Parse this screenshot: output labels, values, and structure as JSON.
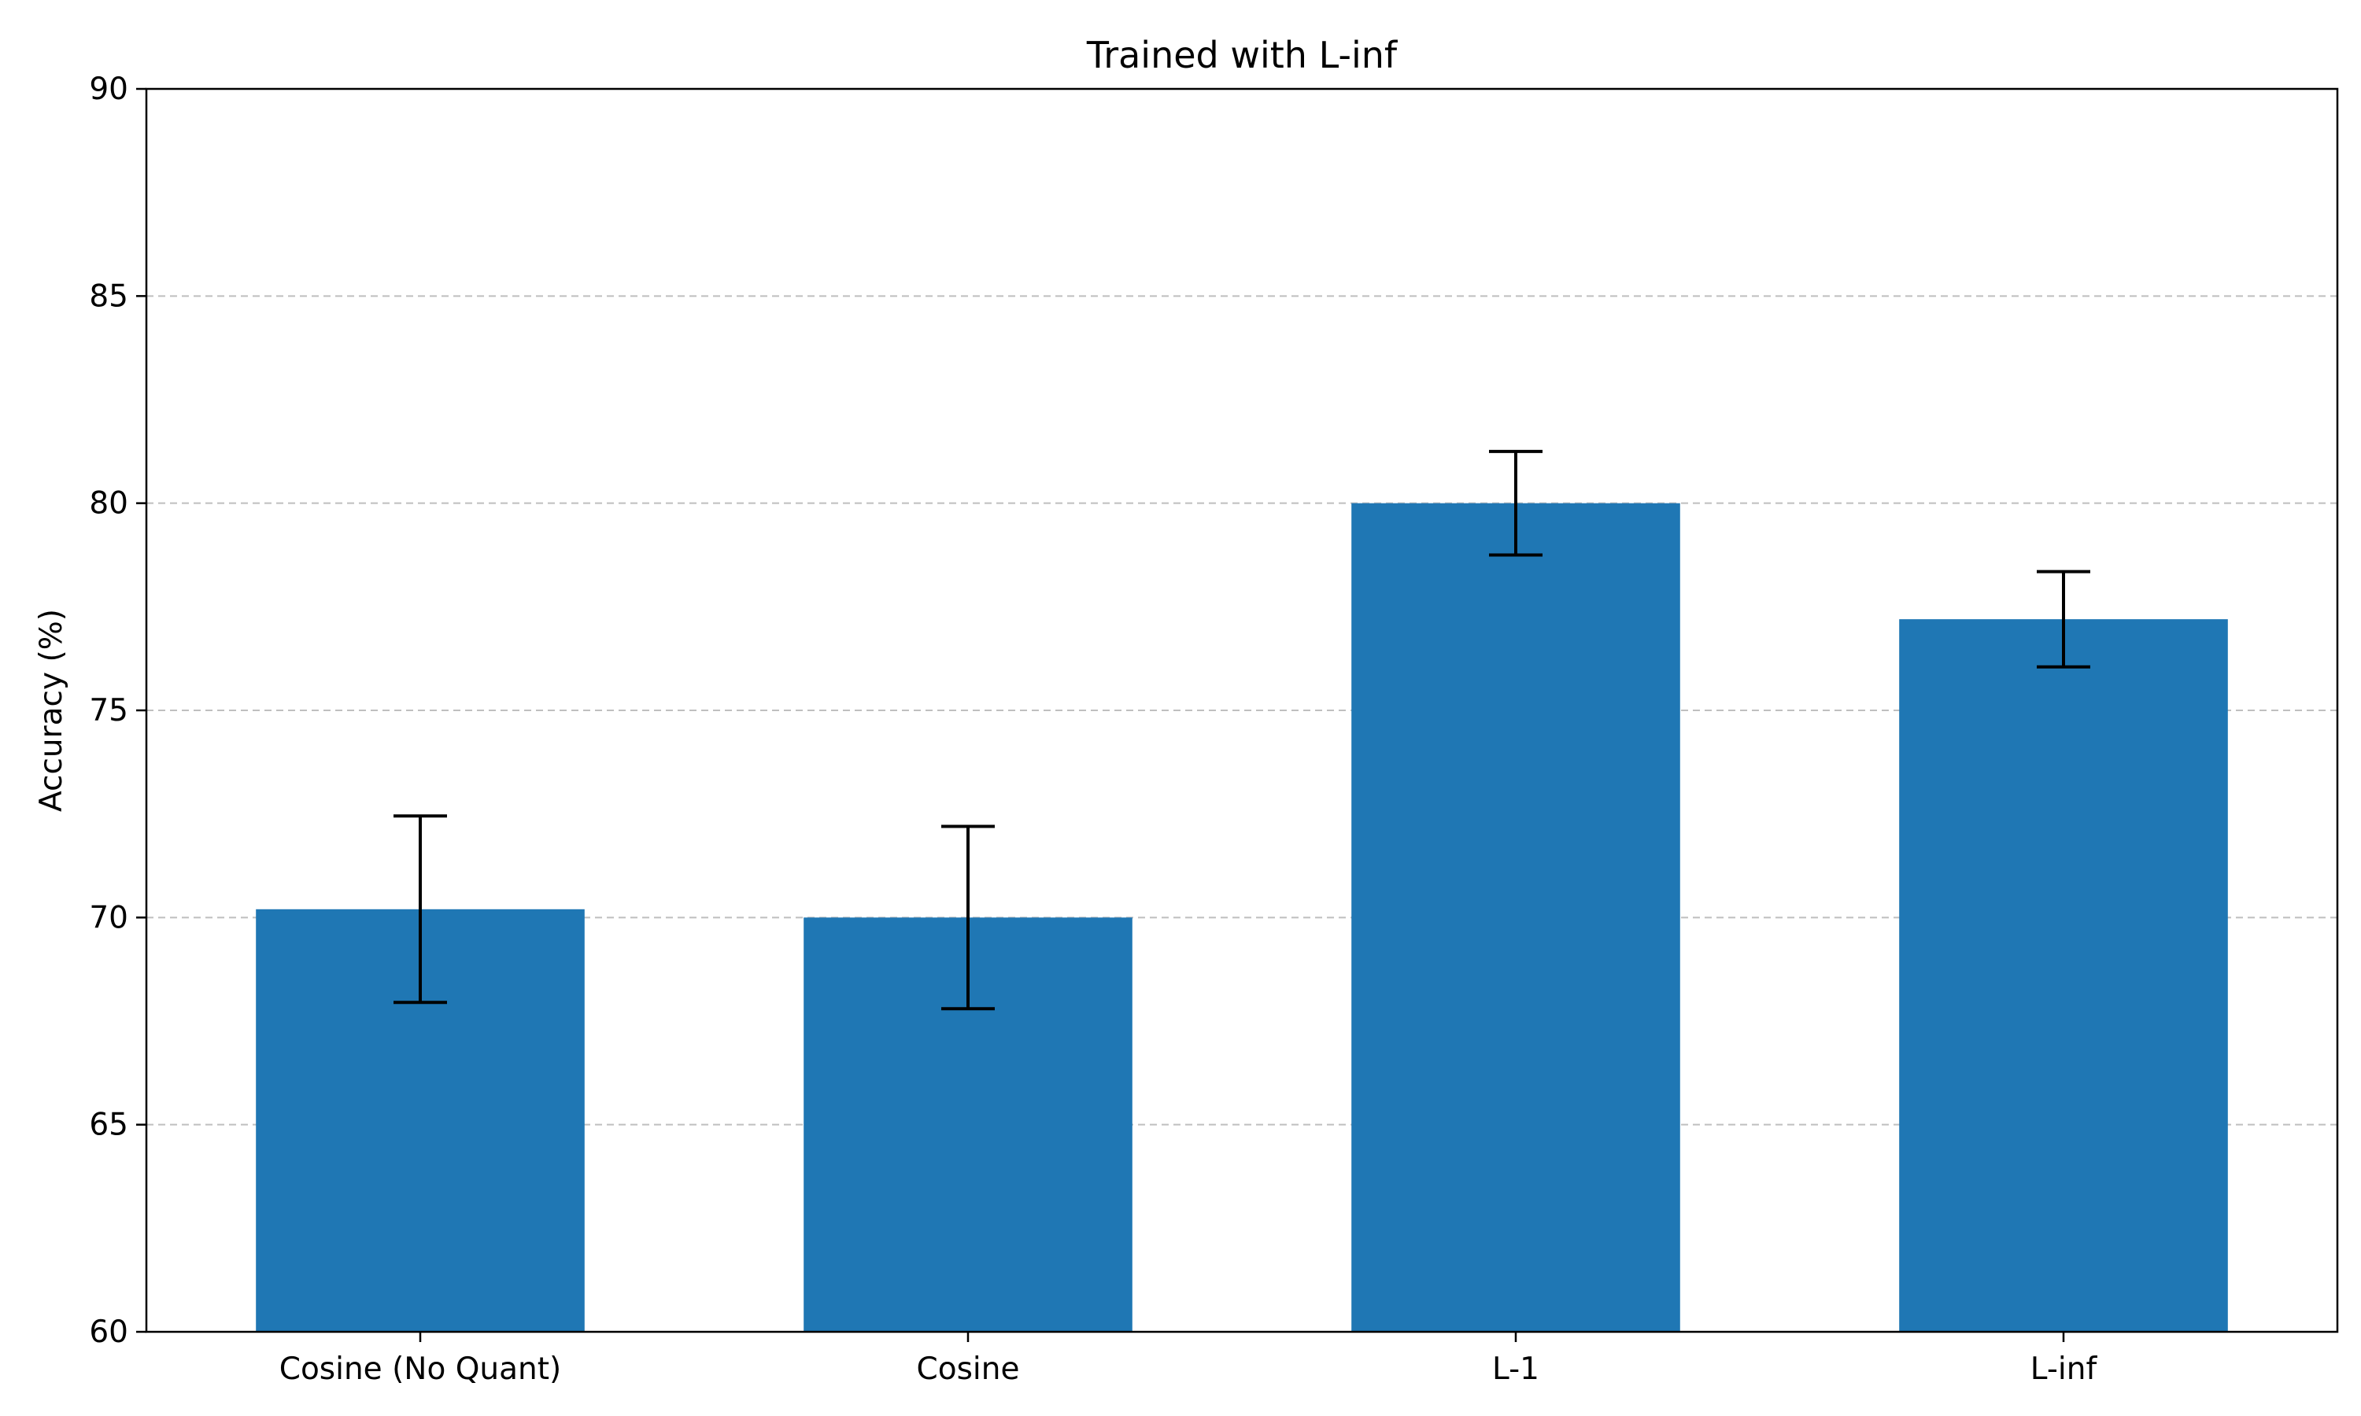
{
  "chart_data": {
    "type": "bar",
    "title": "Trained with L-inf",
    "xlabel": "",
    "ylabel": "Accuracy (%)",
    "categories": [
      "Cosine (No Quant)",
      "Cosine",
      "L-1",
      "L-inf"
    ],
    "values": [
      70.2,
      70.0,
      80.0,
      77.2
    ],
    "errors": [
      2.25,
      2.2,
      1.25,
      1.15
    ],
    "ylim": [
      60,
      90
    ],
    "yticks": [
      60,
      65,
      70,
      75,
      80,
      85,
      90
    ],
    "grid": "y-dashed",
    "colors": {
      "bar": "#1f77b4",
      "error": "#000000",
      "grid": "#bfbfbf"
    }
  }
}
